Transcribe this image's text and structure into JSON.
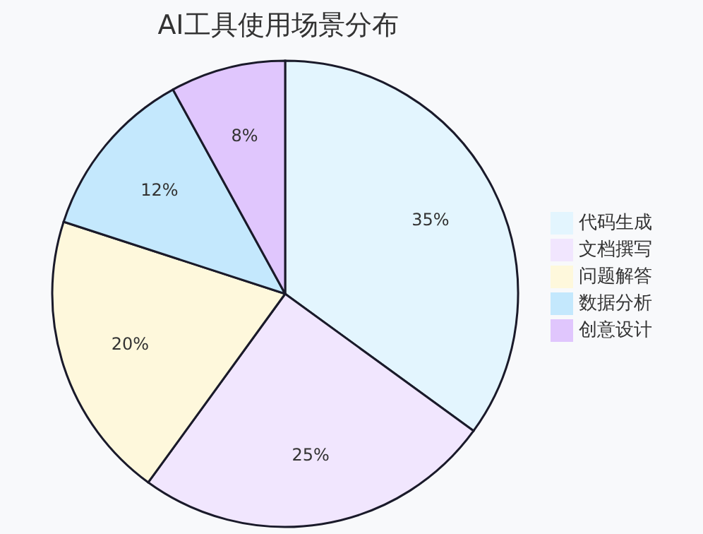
{
  "chart_data": {
    "type": "pie",
    "title": "AI工具使用场景分布",
    "categories": [
      "代码生成",
      "文档撰写",
      "问题解答",
      "数据分析",
      "创意设计"
    ],
    "values": [
      35,
      25,
      20,
      12,
      8
    ],
    "colors": [
      "#e3f5fe",
      "#f1e6fe",
      "#fef8dc",
      "#c4e8fd",
      "#e0c6fd"
    ],
    "value_labels": [
      "35%",
      "25%",
      "20%",
      "12%",
      "8%"
    ],
    "legend": "right"
  }
}
